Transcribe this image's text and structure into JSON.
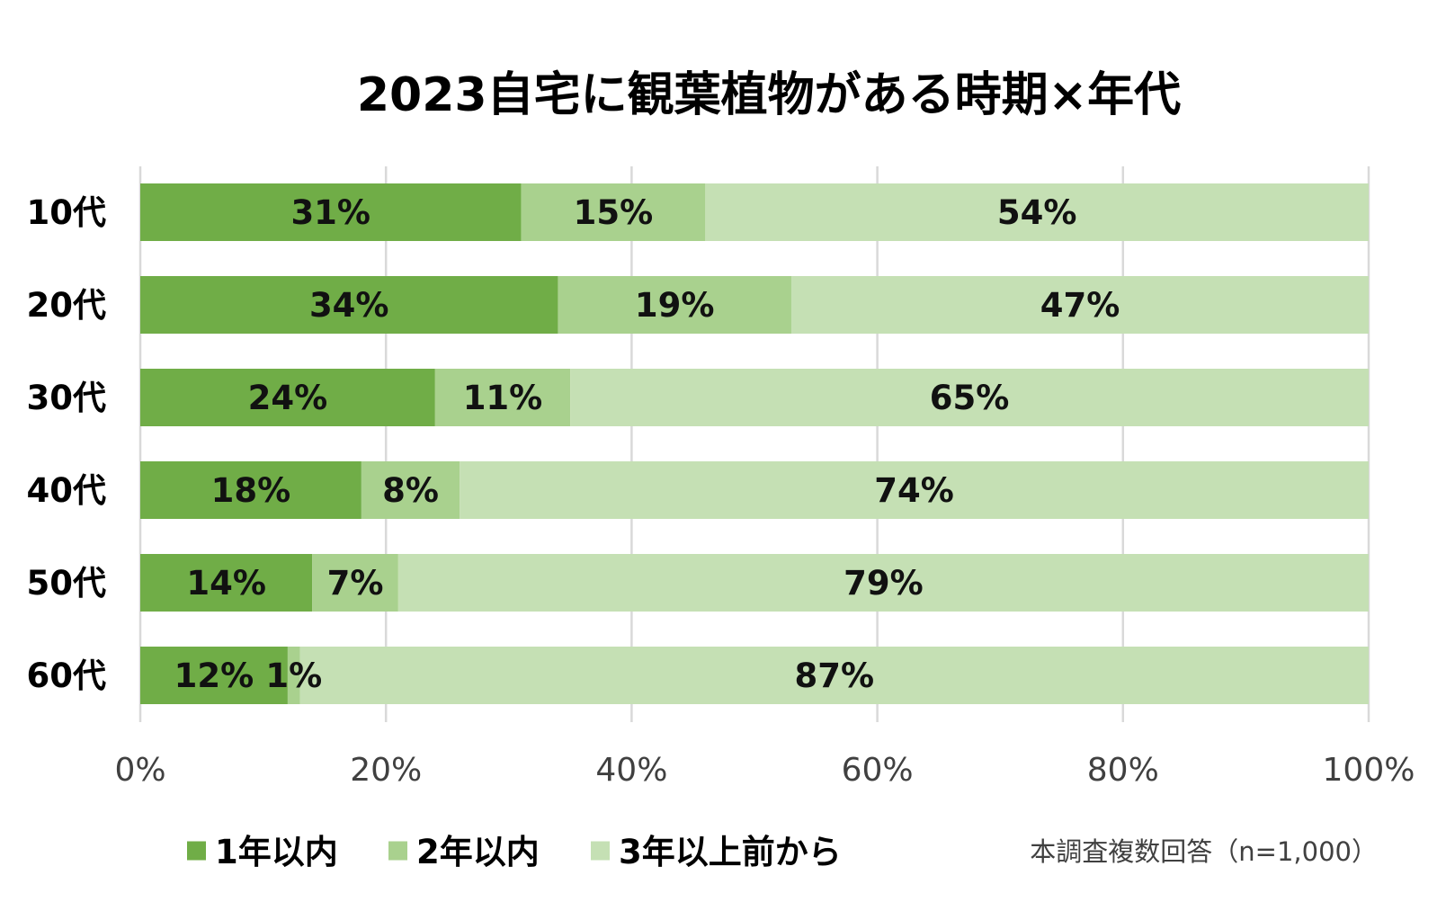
{
  "chart_data": {
    "type": "bar",
    "orientation": "horizontal",
    "stacked": true,
    "title": "2023自宅に観葉植物がある時期×年代",
    "categories": [
      "10代",
      "20代",
      "30代",
      "40代",
      "50代",
      "60代"
    ],
    "series": [
      {
        "name": "1年以内",
        "color": "#70ad47",
        "values": [
          31,
          34,
          24,
          18,
          14,
          12
        ]
      },
      {
        "name": "2年以内",
        "color": "#a9d18e",
        "values": [
          15,
          19,
          11,
          8,
          7,
          1
        ]
      },
      {
        "name": "3年以上前から",
        "color": "#c5e0b4",
        "values": [
          54,
          47,
          65,
          74,
          79,
          87
        ]
      }
    ],
    "data_label_suffix": "%",
    "xlim": [
      0,
      100
    ],
    "x_ticks": [
      0,
      20,
      40,
      60,
      80,
      100
    ],
    "x_tick_labels": [
      "0%",
      "20%",
      "40%",
      "60%",
      "80%",
      "100%"
    ],
    "xlabel": "",
    "ylabel": "",
    "grid": "vertical",
    "legend_position": "bottom",
    "note": "本調査複数回答（n=1,000）"
  }
}
